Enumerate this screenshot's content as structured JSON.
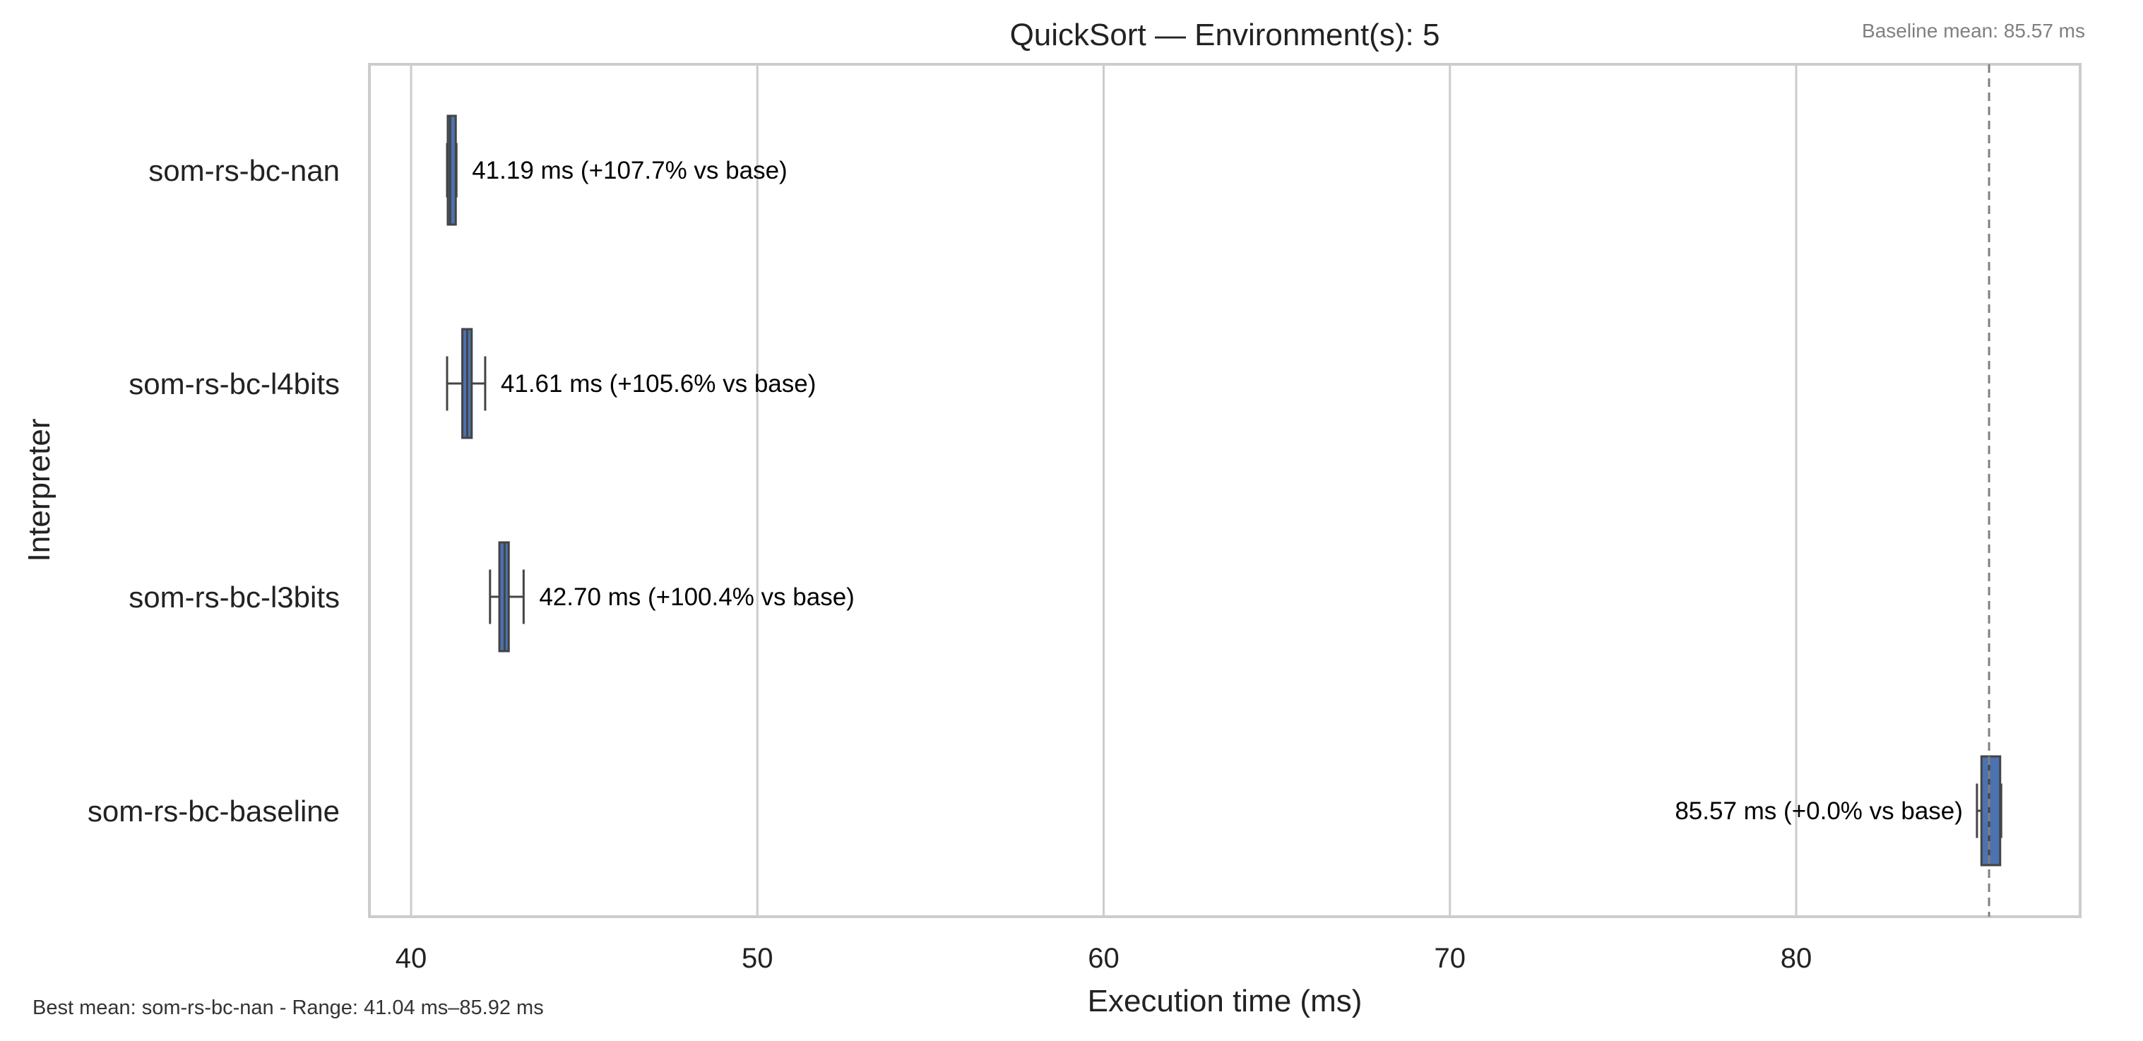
{
  "chart_data": {
    "type": "boxplot",
    "orientation": "horizontal",
    "title": "QuickSort — Environment(s): 5",
    "xlabel": "Execution time (ms)",
    "ylabel": "Interpreter",
    "xlim": [
      38.8,
      88.4
    ],
    "xticks": [
      40,
      50,
      60,
      70,
      80
    ],
    "grid": "x",
    "baseline": {
      "value": 85.57,
      "label": "Baseline mean: 85.57 ms"
    },
    "footer": "Best mean: som-rs-bc-nan - Range: 41.04 ms–85.92 ms",
    "series": [
      {
        "name": "som-rs-bc-nan",
        "whisker_low": 41.04,
        "q1": 41.06,
        "median": 41.13,
        "q3": 41.29,
        "whisker_high": 41.31,
        "label": "41.19 ms  (+107.7% vs base)",
        "color": "#4c72b0"
      },
      {
        "name": "som-rs-bc-l4bits",
        "whisker_low": 41.04,
        "q1": 41.48,
        "median": 41.62,
        "q3": 41.75,
        "whisker_high": 42.14,
        "label": "41.61 ms  (+105.6% vs base)",
        "color": "#4c72b0"
      },
      {
        "name": "som-rs-bc-l3bits",
        "whisker_low": 42.28,
        "q1": 42.55,
        "median": 42.7,
        "q3": 42.82,
        "whisker_high": 43.25,
        "label": "42.70 ms  (+100.4% vs base)",
        "color": "#4c72b0"
      },
      {
        "name": "som-rs-bc-baseline",
        "whisker_low": 85.22,
        "q1": 85.35,
        "median": 85.57,
        "q3": 85.89,
        "whisker_high": 85.92,
        "label": "85.57 ms  (+0.0% vs base)",
        "color": "#4c72b0"
      }
    ]
  }
}
